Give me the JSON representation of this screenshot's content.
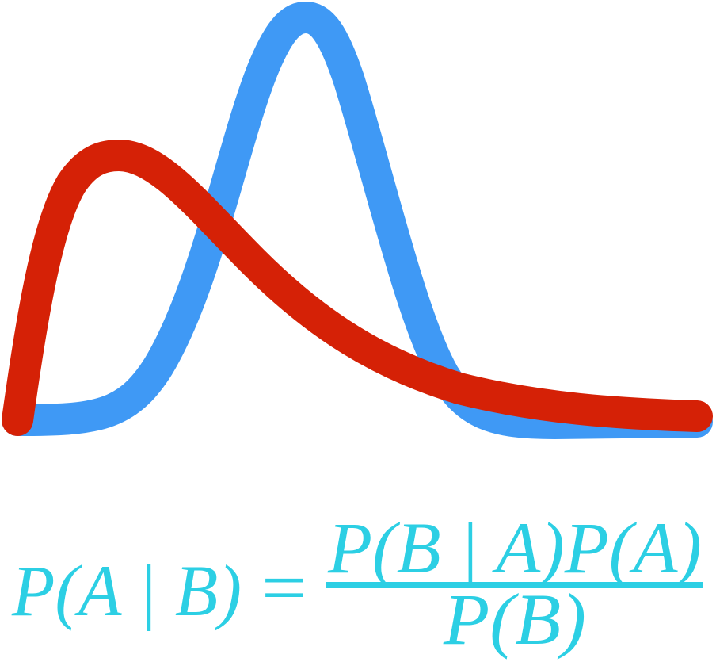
{
  "formula": {
    "left": "P(A | B)",
    "equals": "=",
    "numerator": "P(B | A)P(A)",
    "denominator": "P(B)"
  }
}
